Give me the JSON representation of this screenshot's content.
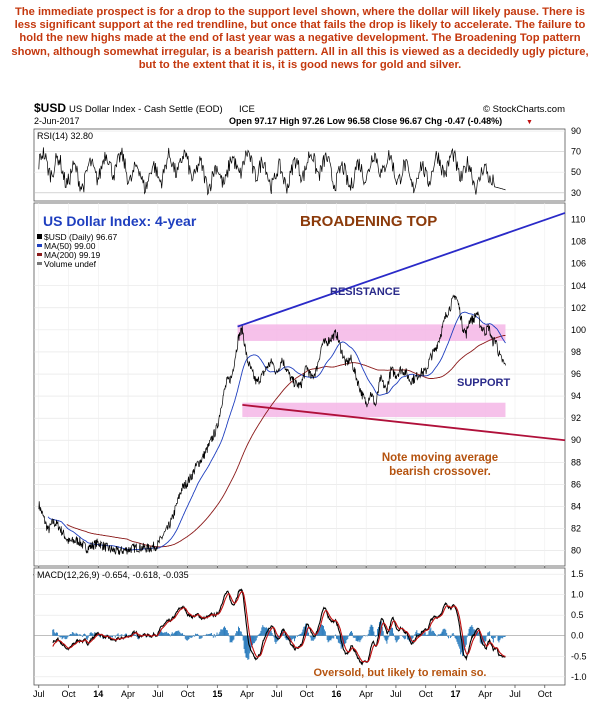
{
  "commentary": "The immediate prospect is for a drop to the support level shown, where the dollar will likely pause. There is less significant support at the red trendline, but once that fails the drop is likely to accelerate. The failure to hold the new highs made at the end of last year was a negative development. The Broadening Top pattern shown, although somewhat irregular, is a bearish pattern. All in all this is viewed as a decidedly ugly picture, but to the extent that it is, it is good news for gold and silver.",
  "header": {
    "symbol": "$USD",
    "name": "US Dollar Index - Cash Settle (EOD)",
    "exchange": "ICE",
    "copyright": "© StockCharts.com",
    "date": "2-Jun-2017",
    "ohlc": "Open 97.17  High 97.26  Low 96.58  Close 96.67  Chg -0.47 (-0.48%)",
    "chg_marker": "▼"
  },
  "colors": {
    "commentary": "#c4380e",
    "price": "#000000",
    "ma50": "#1f3fbf",
    "ma200": "#8b1a1a",
    "trend_upper": "#2a2ac8",
    "trend_lower": "#b0103a",
    "zone": "#f4b6e6",
    "title_blue": "#1f3fbf",
    "title_brown": "#8b3a0a",
    "macd_hist": "#2f7fbf",
    "macd_line": "#000000",
    "macd_signal": "#c01010"
  },
  "chart_data": [
    {
      "type": "line",
      "panel": "rsi",
      "label": "RSI(14) 32.80",
      "series": [
        {
          "name": "RSI(14)",
          "last": 32.8
        }
      ],
      "y_ticks": [
        30,
        50,
        70,
        90
      ],
      "ylim": [
        22,
        92
      ]
    },
    {
      "type": "line",
      "panel": "price",
      "title": "US Dollar Index: 4-year",
      "pattern_label": "BROADENING TOP",
      "legend": [
        "$USD (Daily) 96.67",
        "MA(50) 99.00",
        "MA(200) 99.19",
        "Volume undef"
      ],
      "x_ticks": [
        "Jul",
        "Oct",
        "14",
        "Apr",
        "Jul",
        "Oct",
        "15",
        "Apr",
        "Jul",
        "Oct",
        "16",
        "Apr",
        "Jul",
        "Oct",
        "17",
        "Apr",
        "Jul",
        "Oct"
      ],
      "x_tick_dates": [
        2013.5,
        2013.75,
        2014.0,
        2014.25,
        2014.5,
        2014.75,
        2015.0,
        2015.25,
        2015.5,
        2015.75,
        2016.0,
        2016.25,
        2016.5,
        2016.75,
        2017.0,
        2017.25,
        2017.5,
        2017.75
      ],
      "y_ticks": [
        80,
        82,
        84,
        86,
        88,
        90,
        92,
        94,
        96,
        98,
        100,
        102,
        104
      ],
      "y_extra_ticks": [
        106,
        108,
        110
      ],
      "ylim": [
        78.6,
        111.5
      ],
      "xlim": [
        2013.46,
        2017.92
      ],
      "series": [
        {
          "name": "$USD (Daily)",
          "x": [
            2013.5,
            2013.58,
            2013.62,
            2013.66,
            2013.75,
            2013.83,
            2013.9,
            2014.0,
            2014.08,
            2014.16,
            2014.25,
            2014.33,
            2014.42,
            2014.5,
            2014.54,
            2014.58,
            2014.62,
            2014.66,
            2014.7,
            2014.75,
            2014.79,
            2014.83,
            2014.87,
            2014.92,
            2015.0,
            2015.04,
            2015.08,
            2015.12,
            2015.15,
            2015.18,
            2015.21,
            2015.25,
            2015.3,
            2015.33,
            2015.38,
            2015.42,
            2015.46,
            2015.5,
            2015.54,
            2015.58,
            2015.62,
            2015.66,
            2015.7,
            2015.75,
            2015.79,
            2015.83,
            2015.88,
            2015.92,
            2016.0,
            2016.04,
            2016.08,
            2016.12,
            2016.17,
            2016.21,
            2016.25,
            2016.29,
            2016.33,
            2016.37,
            2016.42,
            2016.46,
            2016.5,
            2016.54,
            2016.58,
            2016.62,
            2016.66,
            2016.7,
            2016.75,
            2016.79,
            2016.83,
            2016.87,
            2016.92,
            2016.96,
            2017.0,
            2017.03,
            2017.06,
            2017.09,
            2017.12,
            2017.15,
            2017.18,
            2017.21,
            2017.25,
            2017.28,
            2017.31,
            2017.34,
            2017.36,
            2017.38,
            2017.4,
            2017.42
          ],
          "values": [
            84.2,
            81.8,
            82.6,
            82.3,
            80.8,
            80.9,
            80.2,
            80.7,
            80.2,
            79.9,
            80.1,
            80.3,
            80.2,
            80.5,
            81.3,
            81.9,
            82.8,
            84.2,
            85.6,
            86.2,
            86.9,
            87.8,
            88.3,
            89.3,
            91.2,
            93.6,
            95.3,
            95.7,
            97.6,
            99.4,
            100.1,
            97.3,
            95.9,
            95.2,
            95.9,
            96.7,
            97.1,
            96.0,
            97.4,
            96.5,
            95.5,
            95.1,
            94.9,
            96.7,
            95.6,
            96.3,
            98.7,
            98.9,
            99.7,
            98.2,
            96.9,
            97.4,
            95.6,
            94.3,
            93.3,
            94.3,
            93.1,
            95.6,
            94.5,
            96.4,
            95.9,
            96.4,
            96.2,
            95.4,
            95.6,
            96.1,
            96.2,
            97.5,
            98.2,
            99.4,
            101.3,
            102.2,
            103.2,
            102.1,
            100.3,
            99.6,
            101.0,
            100.9,
            101.6,
            100.4,
            99.8,
            100.3,
            98.9,
            99.1,
            98.0,
            97.4,
            97.1,
            96.7
          ]
        },
        {
          "name": "MA(50)",
          "last": 99.0
        },
        {
          "name": "MA(200)",
          "last": 99.19
        }
      ],
      "zones": [
        {
          "label": "RESISTANCE",
          "y0": 99.0,
          "y1": 100.5,
          "x0": 2015.17,
          "x1": 2017.42
        },
        {
          "label": "SUPPORT",
          "y0": 92.1,
          "y1": 93.4,
          "x0": 2015.21,
          "x1": 2017.42
        }
      ],
      "trendlines": [
        {
          "name": "upper",
          "x": [
            2015.17,
            2017.92
          ],
          "y": [
            100.3,
            110.6
          ]
        },
        {
          "name": "lower",
          "x": [
            2015.21,
            2017.92
          ],
          "y": [
            93.2,
            90.0
          ]
        }
      ],
      "annotation": "Note moving average bearish crossover."
    },
    {
      "type": "line",
      "panel": "macd",
      "label": "MACD(12,26,9) -0.654, -0.618, -0.035",
      "annotation": "Oversold, but likely to remain so.",
      "y_ticks": [
        -1.0,
        -0.5,
        0.0,
        0.5,
        1.0,
        1.5
      ],
      "ylim": [
        -1.2,
        1.65
      ],
      "series": [
        {
          "name": "MACD",
          "last": -0.654
        },
        {
          "name": "Signal",
          "last": -0.618
        },
        {
          "name": "Histogram",
          "last": -0.035
        }
      ]
    }
  ]
}
